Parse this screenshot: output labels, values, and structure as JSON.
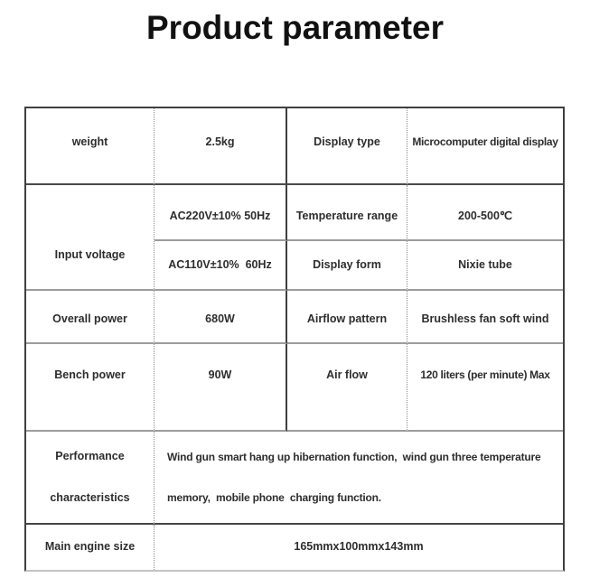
{
  "title": "Product parameter",
  "table": {
    "weight": {
      "label": "weight",
      "value": "2.5kg"
    },
    "display_type": {
      "label": "Display type",
      "value": "Microcomputer digital display"
    },
    "input_voltage": {
      "label": "Input voltage",
      "value_220": "AC220V±10% 50Hz",
      "value_110": "AC110V±10%  60Hz"
    },
    "temperature_range": {
      "label": "Temperature range",
      "value": "200-500℃"
    },
    "display_form": {
      "label": "Display form",
      "value": "Nixie tube"
    },
    "overall_power": {
      "label": "Overall power",
      "value": "680W"
    },
    "airflow_pattern": {
      "label": "Airflow pattern",
      "value": "Brushless fan soft wind"
    },
    "bench_power": {
      "label": "Bench power",
      "value": "90W"
    },
    "air_flow": {
      "label": "Air flow",
      "value": "120 liters (per minute) Max"
    },
    "performance": {
      "label_line1": "Performance",
      "label_line2": "characteristics",
      "value_line1": "Wind gun smart hang up hibernation function,  wind gun three temperature",
      "value_line2": "memory,  mobile phone  charging function."
    },
    "main_engine_size": {
      "label": "Main engine size",
      "value": "165mmx100mmx143mm"
    }
  }
}
